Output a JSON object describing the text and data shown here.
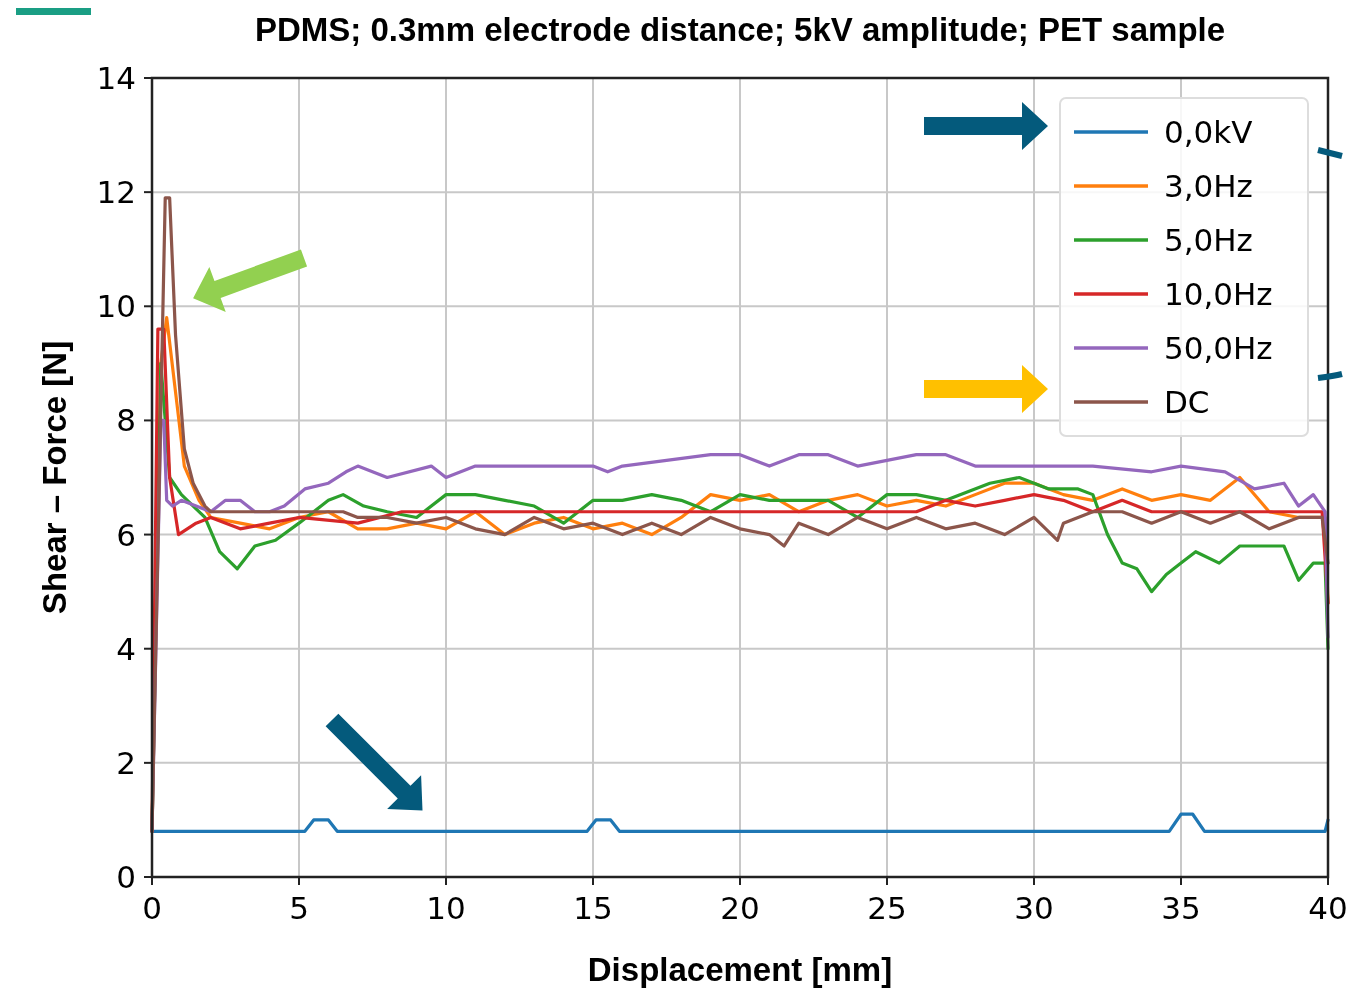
{
  "chart_data": {
    "type": "line",
    "title": "PDMS; 0.3mm electrode distance; 5kV amplitude; PET sample",
    "xlabel": "Displacement [mm]",
    "ylabel": "Shear – Force [N]",
    "xlim": [
      0,
      40
    ],
    "ylim": [
      0,
      14
    ],
    "xticks": [
      0,
      5,
      10,
      15,
      20,
      25,
      30,
      35,
      40
    ],
    "yticks": [
      0,
      2,
      4,
      6,
      8,
      10,
      12,
      14
    ],
    "grid": true,
    "legend": "top right",
    "line_style": "solid",
    "series": [
      {
        "name": "0,0kV",
        "color": "#1f77b4",
        "x": [
          0,
          5.2,
          5.5,
          6.0,
          6.3,
          14.8,
          15.1,
          15.6,
          15.9,
          34.6,
          35.0,
          35.4,
          35.8,
          39.9,
          40
        ],
        "values": [
          0.8,
          0.8,
          1.0,
          1.0,
          0.8,
          0.8,
          1.0,
          1.0,
          0.8,
          0.8,
          1.1,
          1.1,
          0.8,
          0.8,
          1.0
        ]
      },
      {
        "name": "3,0Hz",
        "color": "#ff7f0e",
        "x": [
          0,
          0.3,
          0.5,
          0.8,
          1.1,
          1.6,
          2.0,
          3,
          4,
          5,
          6,
          7,
          8,
          9,
          10,
          11,
          12,
          13,
          14,
          15,
          16,
          17,
          18,
          19,
          20,
          21,
          22,
          23,
          24,
          25,
          26,
          27,
          28,
          29,
          30,
          31,
          32,
          33,
          34,
          35,
          36,
          37,
          38,
          39,
          39.9,
          40
        ],
        "values": [
          0.8,
          9.0,
          9.8,
          8.5,
          7.2,
          6.6,
          6.3,
          6.2,
          6.1,
          6.3,
          6.4,
          6.1,
          6.1,
          6.2,
          6.1,
          6.4,
          6.0,
          6.2,
          6.3,
          6.1,
          6.2,
          6.0,
          6.3,
          6.7,
          6.6,
          6.7,
          6.4,
          6.6,
          6.7,
          6.5,
          6.6,
          6.5,
          6.7,
          6.9,
          6.9,
          6.7,
          6.6,
          6.8,
          6.6,
          6.7,
          6.6,
          7.0,
          6.4,
          6.3,
          6.3,
          4.8
        ]
      },
      {
        "name": "5,0Hz",
        "color": "#2ca02c",
        "x": [
          0,
          0.3,
          0.6,
          1.0,
          1.8,
          2.3,
          2.9,
          3.5,
          4.2,
          5,
          6,
          6.5,
          7.2,
          8,
          9,
          10,
          11,
          12,
          13,
          14,
          15,
          16,
          17,
          18,
          19,
          20,
          21,
          22,
          23,
          24,
          25,
          26,
          27,
          28.5,
          29.5,
          30.5,
          31.5,
          32,
          32.5,
          33,
          33.5,
          34,
          34.5,
          35,
          35.5,
          36.3,
          37,
          38.5,
          39,
          39.5,
          39.9,
          40
        ],
        "values": [
          0.8,
          9.0,
          7.0,
          6.7,
          6.3,
          5.7,
          5.4,
          5.8,
          5.9,
          6.2,
          6.6,
          6.7,
          6.5,
          6.4,
          6.3,
          6.7,
          6.7,
          6.6,
          6.5,
          6.2,
          6.6,
          6.6,
          6.7,
          6.6,
          6.4,
          6.7,
          6.6,
          6.6,
          6.6,
          6.3,
          6.7,
          6.7,
          6.6,
          6.9,
          7.0,
          6.8,
          6.8,
          6.7,
          6.0,
          5.5,
          5.4,
          5.0,
          5.3,
          5.5,
          5.7,
          5.5,
          5.8,
          5.8,
          5.2,
          5.5,
          5.5,
          4.0
        ]
      },
      {
        "name": "10,0Hz",
        "color": "#d62728",
        "x": [
          0,
          0.2,
          0.4,
          0.6,
          0.9,
          1.5,
          2,
          3,
          4,
          5,
          7,
          8.5,
          11,
          26,
          27,
          28,
          29,
          30,
          31,
          32,
          33,
          34,
          39.8,
          40
        ],
        "values": [
          0.8,
          9.6,
          9.6,
          7.0,
          6.0,
          6.2,
          6.3,
          6.1,
          6.2,
          6.3,
          6.2,
          6.4,
          6.4,
          6.4,
          6.6,
          6.5,
          6.6,
          6.7,
          6.6,
          6.4,
          6.6,
          6.4,
          6.4,
          4.8
        ]
      },
      {
        "name": "50,0Hz",
        "color": "#9467bd",
        "x": [
          0,
          0.3,
          0.4,
          0.5,
          0.7,
          1,
          2,
          2.5,
          3,
          3.5,
          4,
          4.5,
          5.2,
          6,
          6.6,
          7,
          8,
          9.5,
          10,
          11,
          15,
          15.5,
          16,
          19,
          20,
          21,
          22,
          23,
          24,
          26,
          27,
          28,
          32,
          34,
          35,
          36.5,
          37.5,
          38.5,
          39,
          39.5,
          39.9,
          40
        ],
        "values": [
          0.8,
          8.0,
          8.0,
          6.6,
          6.5,
          6.6,
          6.4,
          6.6,
          6.6,
          6.4,
          6.4,
          6.5,
          6.8,
          6.9,
          7.1,
          7.2,
          7.0,
          7.2,
          7.0,
          7.2,
          7.2,
          7.1,
          7.2,
          7.4,
          7.4,
          7.2,
          7.4,
          7.4,
          7.2,
          7.4,
          7.4,
          7.2,
          7.2,
          7.1,
          7.2,
          7.1,
          6.8,
          6.9,
          6.5,
          6.7,
          6.4,
          4.2
        ]
      },
      {
        "name": "DC",
        "color": "#8c564b",
        "x": [
          0,
          0.45,
          0.6,
          0.8,
          1.1,
          1.4,
          1.8,
          2,
          6.5,
          7,
          8,
          9,
          10,
          11,
          12,
          13,
          14,
          15,
          16,
          17,
          18,
          19,
          20,
          21,
          21.5,
          22,
          23,
          24,
          25,
          26,
          27,
          28,
          29,
          30,
          30.8,
          31,
          32,
          33,
          34,
          35,
          36,
          37,
          38,
          39,
          39.8,
          40
        ],
        "values": [
          0.8,
          11.9,
          11.9,
          9.5,
          7.5,
          6.9,
          6.5,
          6.4,
          6.4,
          6.3,
          6.3,
          6.2,
          6.3,
          6.1,
          6.0,
          6.3,
          6.1,
          6.2,
          6.0,
          6.2,
          6.0,
          6.3,
          6.1,
          6.0,
          5.8,
          6.2,
          6.0,
          6.3,
          6.1,
          6.3,
          6.1,
          6.2,
          6.0,
          6.3,
          5.9,
          6.2,
          6.4,
          6.4,
          6.2,
          6.4,
          6.2,
          6.4,
          6.1,
          6.3,
          6.3,
          5.5
        ]
      }
    ]
  }
}
